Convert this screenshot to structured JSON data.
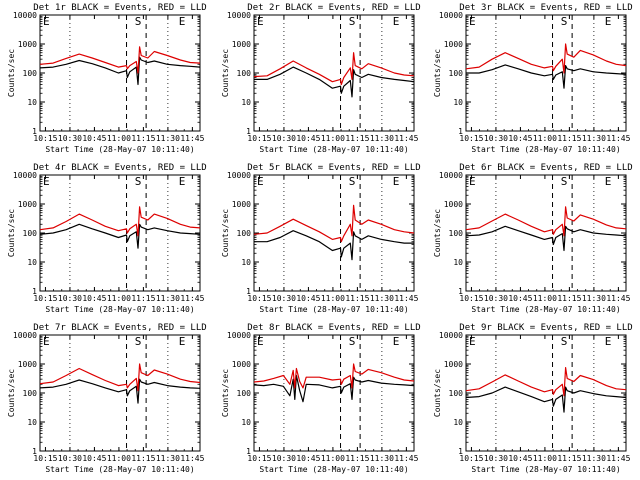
{
  "figure": {
    "xlabel": "Start Time (28-May-07 10:11:40)",
    "ylabel": "Counts/sec",
    "xticklabels": [
      "10:15",
      "10:30",
      "10:45",
      "11:00",
      "11:15",
      "11:30",
      "11:45"
    ],
    "yticklabels": [
      "1",
      "10",
      "100",
      "1000",
      "10000"
    ],
    "markers": [
      "E",
      "S",
      "E"
    ]
  },
  "chart_data": [
    {
      "type": "line",
      "title": "Det 1r BLACK = Events, RED = LLD",
      "y_scale": "log",
      "ylim": [
        1,
        10000
      ],
      "x_unit": "minutes since 10:11:40",
      "xlim": [
        0,
        98
      ],
      "x": [
        0,
        8,
        16,
        24,
        32,
        40,
        48,
        53,
        53.5,
        55,
        59,
        60,
        61,
        62,
        66,
        70,
        78,
        86,
        92,
        98
      ],
      "series": [
        {
          "name": "BLACK = Events",
          "color": "#000000",
          "values": [
            150,
            160,
            200,
            270,
            210,
            150,
            100,
            120,
            70,
            110,
            160,
            40,
            350,
            280,
            230,
            260,
            200,
            180,
            170,
            160
          ]
        },
        {
          "name": "RED = LLD",
          "color": "#dd0000",
          "values": [
            200,
            220,
            320,
            450,
            330,
            230,
            160,
            180,
            140,
            180,
            250,
            100,
            800,
            400,
            330,
            550,
            400,
            280,
            230,
            220
          ]
        }
      ]
    },
    {
      "type": "line",
      "title": "Det 2r BLACK = Events, RED = LLD",
      "y_scale": "log",
      "ylim": [
        1,
        10000
      ],
      "x_unit": "minutes since 10:11:40",
      "xlim": [
        0,
        98
      ],
      "x": [
        0,
        8,
        16,
        24,
        32,
        40,
        48,
        53,
        53.5,
        55,
        59,
        60,
        61,
        62,
        66,
        70,
        78,
        86,
        92,
        98
      ],
      "series": [
        {
          "name": "BLACK = Events",
          "color": "#000000",
          "values": [
            60,
            60,
            90,
            160,
            100,
            60,
            30,
            35,
            20,
            35,
            55,
            15,
            130,
            90,
            70,
            90,
            70,
            60,
            55,
            50
          ]
        },
        {
          "name": "RED = LLD",
          "color": "#dd0000",
          "values": [
            75,
            80,
            140,
            260,
            150,
            90,
            50,
            60,
            40,
            70,
            150,
            60,
            500,
            180,
            140,
            210,
            150,
            100,
            85,
            80
          ]
        }
      ]
    },
    {
      "type": "line",
      "title": "Det 3r BLACK = Events, RED = LLD",
      "y_scale": "log",
      "ylim": [
        1,
        10000
      ],
      "x_unit": "minutes since 10:11:40",
      "xlim": [
        0,
        98
      ],
      "x": [
        0,
        8,
        16,
        24,
        32,
        40,
        48,
        53,
        53.5,
        55,
        59,
        60,
        61,
        62,
        66,
        70,
        78,
        86,
        92,
        98
      ],
      "series": [
        {
          "name": "BLACK = Events",
          "color": "#000000",
          "values": [
            100,
            100,
            130,
            190,
            140,
            100,
            80,
            90,
            60,
            85,
            110,
            30,
            180,
            140,
            120,
            140,
            110,
            100,
            95,
            90
          ]
        },
        {
          "name": "RED = LLD",
          "color": "#dd0000",
          "values": [
            140,
            160,
            300,
            500,
            320,
            200,
            150,
            170,
            120,
            170,
            300,
            100,
            1000,
            450,
            350,
            600,
            420,
            260,
            200,
            180
          ]
        }
      ]
    },
    {
      "type": "line",
      "title": "Det 4r BLACK = Events, RED = LLD",
      "y_scale": "log",
      "ylim": [
        1,
        10000
      ],
      "x_unit": "minutes since 10:11:40",
      "xlim": [
        0,
        98
      ],
      "x": [
        0,
        8,
        16,
        24,
        32,
        40,
        48,
        53,
        53.5,
        55,
        59,
        60,
        61,
        62,
        66,
        70,
        78,
        86,
        92,
        98
      ],
      "series": [
        {
          "name": "BLACK = Events",
          "color": "#000000",
          "values": [
            90,
            100,
            130,
            200,
            140,
            100,
            70,
            85,
            50,
            80,
            110,
            30,
            200,
            160,
            130,
            150,
            120,
            100,
            95,
            90
          ]
        },
        {
          "name": "RED = LLD",
          "color": "#dd0000",
          "values": [
            130,
            150,
            250,
            450,
            280,
            170,
            120,
            140,
            100,
            140,
            200,
            80,
            800,
            350,
            280,
            450,
            320,
            200,
            160,
            150
          ]
        }
      ]
    },
    {
      "type": "line",
      "title": "Det 5r BLACK = Events, RED = LLD",
      "y_scale": "log",
      "ylim": [
        1,
        10000
      ],
      "x_unit": "minutes since 10:11:40",
      "xlim": [
        0,
        98
      ],
      "x": [
        0,
        8,
        16,
        24,
        32,
        40,
        48,
        53,
        53.5,
        55,
        59,
        60,
        61,
        62,
        66,
        70,
        78,
        86,
        92,
        98
      ],
      "series": [
        {
          "name": "BLACK = Events",
          "color": "#000000",
          "values": [
            50,
            50,
            70,
            120,
            80,
            50,
            25,
            30,
            15,
            30,
            45,
            12,
            110,
            80,
            60,
            80,
            60,
            50,
            45,
            45
          ]
        },
        {
          "name": "RED = LLD",
          "color": "#dd0000",
          "values": [
            90,
            100,
            170,
            300,
            180,
            110,
            60,
            70,
            50,
            80,
            200,
            80,
            900,
            280,
            200,
            280,
            200,
            130,
            110,
            100
          ]
        }
      ]
    },
    {
      "type": "line",
      "title": "Det 6r BLACK = Events, RED = LLD",
      "y_scale": "log",
      "ylim": [
        1,
        10000
      ],
      "x_unit": "minutes since 10:11:40",
      "xlim": [
        0,
        98
      ],
      "x": [
        0,
        8,
        16,
        24,
        32,
        40,
        48,
        53,
        53.5,
        55,
        59,
        60,
        61,
        62,
        66,
        70,
        78,
        86,
        92,
        98
      ],
      "series": [
        {
          "name": "BLACK = Events",
          "color": "#000000",
          "values": [
            80,
            85,
            110,
            170,
            120,
            85,
            60,
            70,
            40,
            70,
            95,
            25,
            170,
            140,
            110,
            130,
            100,
            90,
            85,
            80
          ]
        },
        {
          "name": "RED = LLD",
          "color": "#dd0000",
          "values": [
            130,
            150,
            260,
            450,
            280,
            170,
            110,
            130,
            90,
            130,
            200,
            80,
            800,
            330,
            260,
            420,
            300,
            190,
            150,
            140
          ]
        }
      ]
    },
    {
      "type": "line",
      "title": "Det 7r BLACK = Events, RED = LLD",
      "y_scale": "log",
      "ylim": [
        1,
        10000
      ],
      "x_unit": "minutes since 10:11:40",
      "xlim": [
        0,
        98
      ],
      "x": [
        0,
        8,
        16,
        24,
        32,
        40,
        48,
        53,
        53.5,
        55,
        59,
        60,
        61,
        62,
        66,
        70,
        78,
        86,
        92,
        98
      ],
      "series": [
        {
          "name": "BLACK = Events",
          "color": "#000000",
          "values": [
            150,
            160,
            200,
            280,
            210,
            150,
            110,
            130,
            80,
            120,
            170,
            45,
            300,
            240,
            200,
            230,
            180,
            160,
            150,
            145
          ]
        },
        {
          "name": "RED = LLD",
          "color": "#dd0000",
          "values": [
            210,
            240,
            400,
            700,
            430,
            270,
            180,
            200,
            150,
            200,
            320,
            120,
            1000,
            500,
            400,
            620,
            450,
            300,
            250,
            230
          ]
        }
      ]
    },
    {
      "type": "line",
      "title": "Det 8r BLACK = Events, RED = LLD",
      "y_scale": "log",
      "ylim": [
        1,
        10000
      ],
      "x_unit": "minutes since 10:11:40",
      "xlim": [
        0,
        98
      ],
      "x": [
        0,
        6,
        12,
        18,
        22,
        24,
        25,
        26,
        28,
        30,
        32,
        40,
        48,
        53,
        53.5,
        55,
        59,
        60,
        61,
        62,
        66,
        70,
        78,
        86,
        92,
        98
      ],
      "series": [
        {
          "name": "BLACK = Events",
          "color": "#000000",
          "values": [
            190,
            180,
            200,
            170,
            80,
            300,
            60,
            400,
            120,
            50,
            200,
            190,
            150,
            170,
            100,
            160,
            210,
            60,
            350,
            280,
            240,
            270,
            220,
            200,
            190,
            180
          ]
        },
        {
          "name": "RED = LLD",
          "color": "#dd0000",
          "values": [
            240,
            260,
            320,
            400,
            200,
            600,
            150,
            700,
            250,
            150,
            350,
            350,
            280,
            300,
            200,
            300,
            400,
            150,
            1000,
            550,
            450,
            650,
            500,
            350,
            280,
            260
          ]
        }
      ]
    },
    {
      "type": "line",
      "title": "Det 9r BLACK = Events, RED = LLD",
      "y_scale": "log",
      "ylim": [
        1,
        10000
      ],
      "x_unit": "minutes since 10:11:40",
      "xlim": [
        0,
        98
      ],
      "x": [
        0,
        8,
        16,
        24,
        32,
        40,
        48,
        53,
        53.5,
        55,
        59,
        60,
        61,
        62,
        66,
        70,
        78,
        86,
        92,
        98
      ],
      "series": [
        {
          "name": "BLACK = Events",
          "color": "#000000",
          "values": [
            70,
            75,
            100,
            160,
            110,
            75,
            50,
            60,
            35,
            60,
            85,
            22,
            160,
            120,
            100,
            120,
            95,
            80,
            75,
            70
          ]
        },
        {
          "name": "RED = LLD",
          "color": "#dd0000",
          "values": [
            120,
            140,
            240,
            420,
            260,
            160,
            110,
            130,
            90,
            130,
            200,
            80,
            750,
            320,
            250,
            400,
            290,
            180,
            140,
            130
          ]
        }
      ]
    }
  ]
}
